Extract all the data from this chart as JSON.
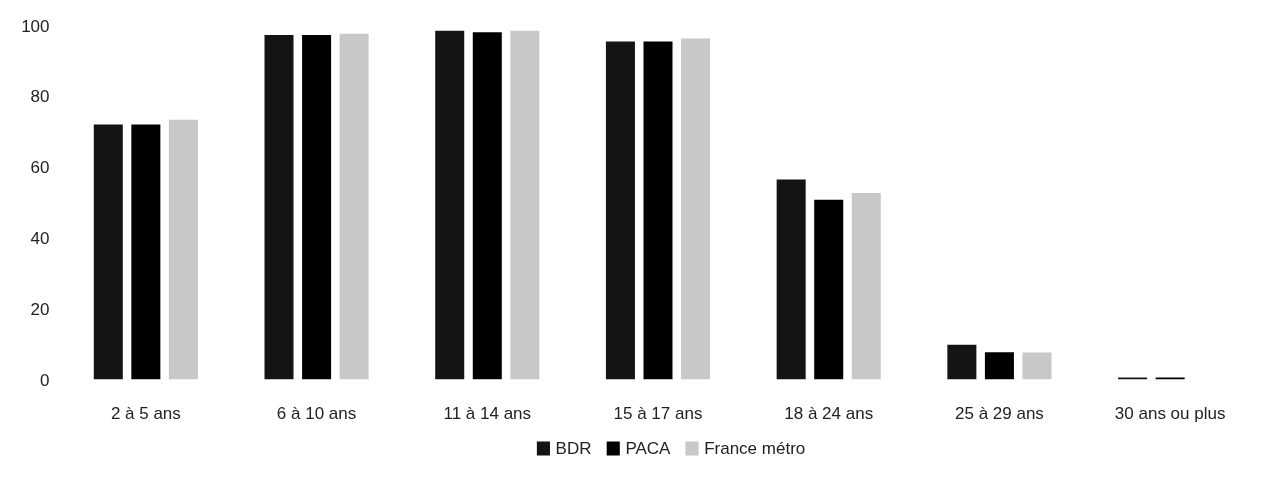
{
  "chart_data": {
    "type": "bar",
    "categories": [
      "2 à 5 ans",
      "6 à 10 ans",
      "11 à 14 ans",
      "15 à 17 ans",
      "18 à 24 ans",
      "25 à 29 ans",
      "30 ans ou plus"
    ],
    "series": [
      {
        "name": "BDR",
        "color": "#141414",
        "values": [
          72,
          97.3,
          98.5,
          95.5,
          56.5,
          9.8,
          0.6
        ]
      },
      {
        "name": "PACA",
        "color": "#000000",
        "values": [
          72,
          97.3,
          98.1,
          95.5,
          50.8,
          7.7,
          0.6
        ]
      },
      {
        "name": "France métro",
        "color": "#c8c8c8",
        "values": [
          73.4,
          97.7,
          98.5,
          96.3,
          52.7,
          7.6,
          0
        ]
      }
    ],
    "ylim": [
      0,
      100
    ],
    "yticks": [
      0,
      20,
      40,
      60,
      80,
      100
    ],
    "grid": false,
    "legend": "bottom"
  }
}
